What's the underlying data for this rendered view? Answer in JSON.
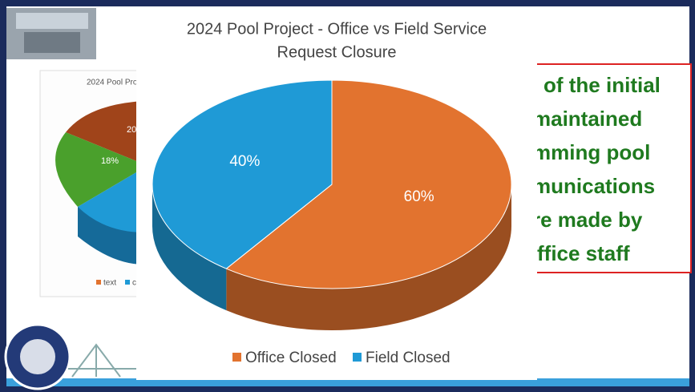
{
  "chart_data": {
    "type": "pie",
    "title": [
      "2024 Pool Project - Office vs Field  Service",
      "Request Closure"
    ],
    "categories": [
      "Office Closed",
      "Field Closed"
    ],
    "values": [
      60,
      40
    ],
    "value_labels": [
      "60%",
      "40%"
    ],
    "colors": [
      "#e2732f",
      "#1f9ad6"
    ],
    "legend": "bottom"
  },
  "background_chart": {
    "title": "2024 Pool Pro",
    "labels": [
      "20",
      "18%"
    ],
    "legend": [
      "text",
      "c"
    ]
  },
  "callout": {
    "lines": [
      "of the initial",
      "maintained",
      "mming pool",
      "munications",
      "re made by",
      "ffice staff"
    ]
  }
}
